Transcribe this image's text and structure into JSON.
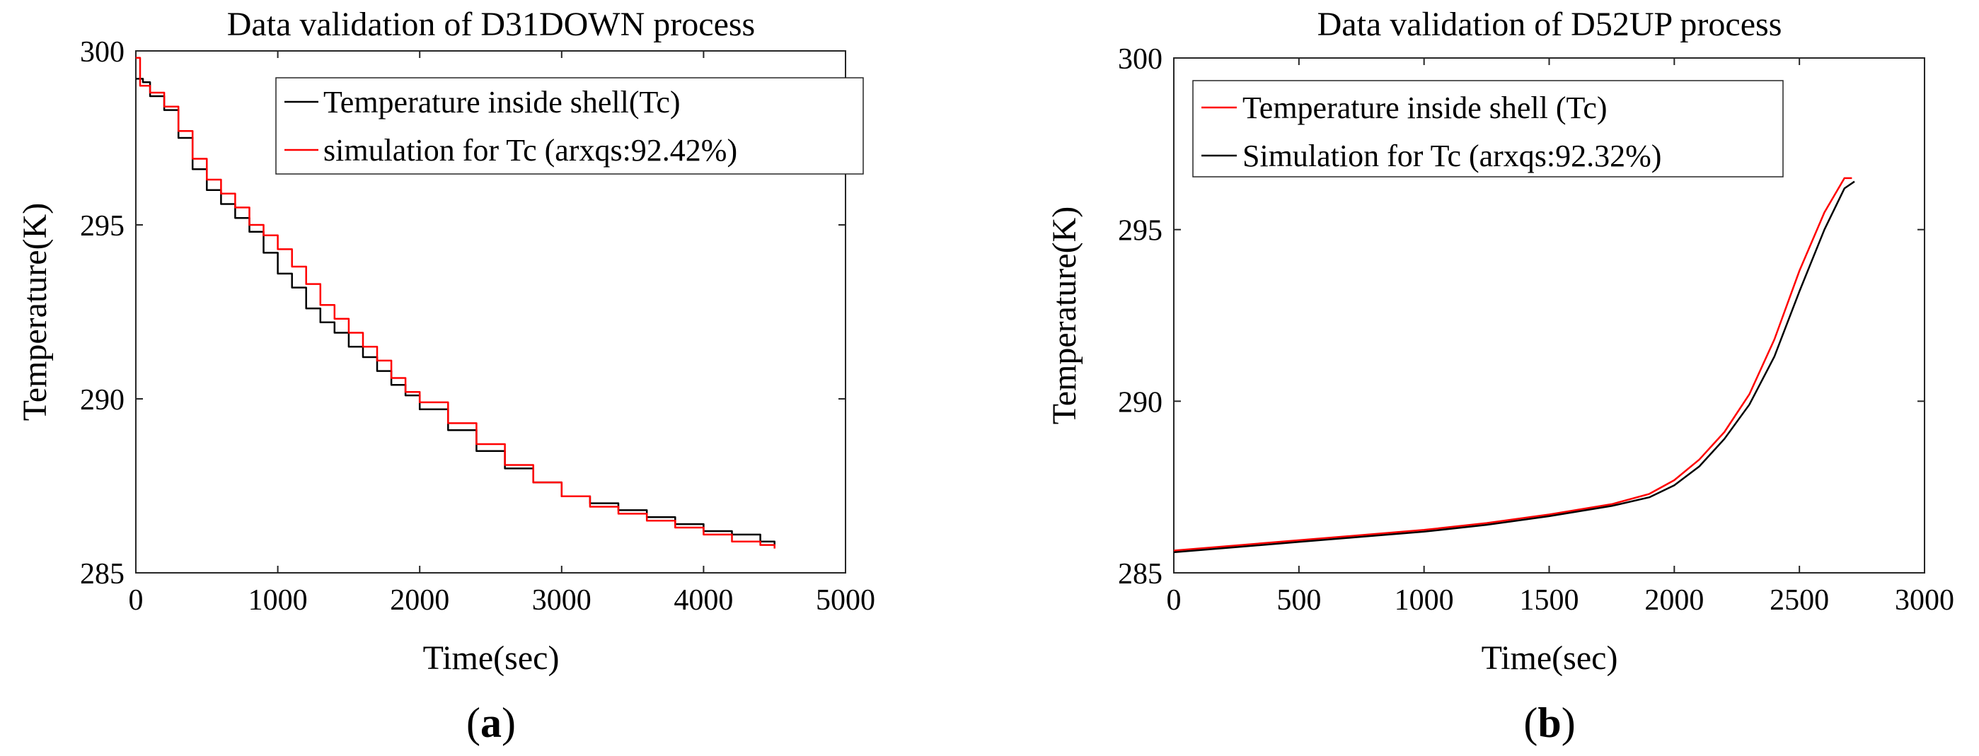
{
  "chart_data": [
    {
      "id": "a",
      "type": "line",
      "title": "Data validation of D31DOWN process",
      "xlabel": "Time(sec)",
      "ylabel": "Temperature(K)",
      "xlim": [
        0,
        5000
      ],
      "ylim": [
        285,
        300
      ],
      "xticks": [
        "0",
        "1000",
        "2000",
        "3000",
        "4000",
        "5000"
      ],
      "yticks": [
        "285",
        "290",
        "295",
        "300"
      ],
      "caption": {
        "open": "(",
        "letter": "a",
        "close": ")"
      },
      "legend_position": "top-right",
      "series": [
        {
          "name": "Temperature inside shell(Tc)",
          "color": "#000000",
          "stepped": true,
          "points": [
            [
              0,
              299.2
            ],
            [
              50,
              299.1
            ],
            [
              100,
              298.7
            ],
            [
              200,
              298.3
            ],
            [
              300,
              297.5
            ],
            [
              400,
              296.6
            ],
            [
              500,
              296.0
            ],
            [
              600,
              295.6
            ],
            [
              700,
              295.2
            ],
            [
              800,
              294.8
            ],
            [
              900,
              294.2
            ],
            [
              1000,
              293.6
            ],
            [
              1100,
              293.2
            ],
            [
              1200,
              292.6
            ],
            [
              1300,
              292.2
            ],
            [
              1400,
              291.9
            ],
            [
              1500,
              291.5
            ],
            [
              1600,
              291.2
            ],
            [
              1700,
              290.8
            ],
            [
              1800,
              290.4
            ],
            [
              1900,
              290.1
            ],
            [
              2000,
              289.7
            ],
            [
              2200,
              289.1
            ],
            [
              2400,
              288.5
            ],
            [
              2600,
              288.0
            ],
            [
              2800,
              287.6
            ],
            [
              3000,
              287.2
            ],
            [
              3200,
              287.0
            ],
            [
              3400,
              286.8
            ],
            [
              3600,
              286.6
            ],
            [
              3800,
              286.4
            ],
            [
              4000,
              286.2
            ],
            [
              4200,
              286.1
            ],
            [
              4400,
              285.9
            ],
            [
              4500,
              285.8
            ]
          ]
        },
        {
          "name": "simulation for Tc (arxqs:92.42%)",
          "color": "#ff0000",
          "stepped": true,
          "points": [
            [
              0,
              299.8
            ],
            [
              30,
              299.0
            ],
            [
              100,
              298.8
            ],
            [
              200,
              298.4
            ],
            [
              300,
              297.7
            ],
            [
              400,
              296.9
            ],
            [
              500,
              296.3
            ],
            [
              600,
              295.9
            ],
            [
              700,
              295.5
            ],
            [
              800,
              295.0
            ],
            [
              900,
              294.7
            ],
            [
              1000,
              294.3
            ],
            [
              1100,
              293.8
            ],
            [
              1200,
              293.3
            ],
            [
              1300,
              292.7
            ],
            [
              1400,
              292.3
            ],
            [
              1500,
              291.9
            ],
            [
              1600,
              291.5
            ],
            [
              1700,
              291.1
            ],
            [
              1800,
              290.6
            ],
            [
              1900,
              290.2
            ],
            [
              2000,
              289.9
            ],
            [
              2200,
              289.3
            ],
            [
              2400,
              288.7
            ],
            [
              2600,
              288.1
            ],
            [
              2800,
              287.6
            ],
            [
              3000,
              287.2
            ],
            [
              3200,
              286.9
            ],
            [
              3400,
              286.7
            ],
            [
              3600,
              286.5
            ],
            [
              3800,
              286.3
            ],
            [
              4000,
              286.1
            ],
            [
              4200,
              285.9
            ],
            [
              4400,
              285.8
            ],
            [
              4500,
              285.7
            ]
          ]
        }
      ]
    },
    {
      "id": "b",
      "type": "line",
      "title": "Data validation of D52UP process",
      "xlabel": "Time(sec)",
      "ylabel": "Temperature(K)",
      "xlim": [
        0,
        3000
      ],
      "ylim": [
        285,
        300
      ],
      "xticks": [
        "0",
        "500",
        "1000",
        "1500",
        "2000",
        "2500",
        "3000"
      ],
      "yticks": [
        "285",
        "290",
        "295",
        "300"
      ],
      "caption": {
        "open": "(",
        "letter": "b",
        "close": ")"
      },
      "legend_position": "top-left",
      "series": [
        {
          "name": "Temperature inside shell (Tc)",
          "color": "#ff0000",
          "stepped": false,
          "points": [
            [
              0,
              285.65
            ],
            [
              250,
              285.8
            ],
            [
              500,
              285.95
            ],
            [
              750,
              286.1
            ],
            [
              1000,
              286.25
            ],
            [
              1250,
              286.45
            ],
            [
              1500,
              286.7
            ],
            [
              1750,
              287.0
            ],
            [
              1900,
              287.3
            ],
            [
              2000,
              287.7
            ],
            [
              2100,
              288.3
            ],
            [
              2200,
              289.1
            ],
            [
              2300,
              290.2
            ],
            [
              2400,
              291.8
            ],
            [
              2500,
              293.8
            ],
            [
              2600,
              295.5
            ],
            [
              2680,
              296.5
            ],
            [
              2710,
              296.5
            ]
          ]
        },
        {
          "name": "Simulation for Tc (arxqs:92.32%)",
          "color": "#000000",
          "stepped": false,
          "points": [
            [
              0,
              285.6
            ],
            [
              250,
              285.75
            ],
            [
              500,
              285.9
            ],
            [
              750,
              286.05
            ],
            [
              1000,
              286.2
            ],
            [
              1250,
              286.4
            ],
            [
              1500,
              286.65
            ],
            [
              1750,
              286.95
            ],
            [
              1900,
              287.2
            ],
            [
              2000,
              287.55
            ],
            [
              2100,
              288.1
            ],
            [
              2200,
              288.9
            ],
            [
              2300,
              289.9
            ],
            [
              2400,
              291.3
            ],
            [
              2500,
              293.2
            ],
            [
              2600,
              295.0
            ],
            [
              2680,
              296.2
            ],
            [
              2720,
              296.4
            ]
          ]
        }
      ]
    }
  ]
}
